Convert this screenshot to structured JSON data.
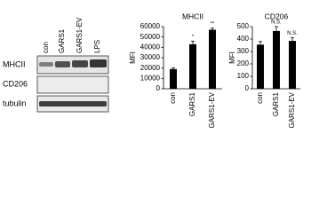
{
  "blot": {
    "lanes": [
      "con",
      "GARS1",
      "GARS1-EV",
      "LPS"
    ],
    "rows": [
      "MHCII",
      "CD206",
      "tubulin"
    ]
  },
  "chart_data": [
    {
      "type": "bar",
      "title": "MHCII",
      "y_label": "MFI",
      "categories": [
        "con",
        "GARS1",
        "GARS1-EV"
      ],
      "values": [
        19000,
        43000,
        57000
      ],
      "errors": [
        1200,
        3000,
        1500
      ],
      "significance": [
        null,
        "*",
        "**"
      ],
      "color": "#000000",
      "ylim": [
        0,
        60000
      ],
      "yticks": [
        0,
        10000,
        20000,
        30000,
        40000,
        50000,
        60000
      ]
    },
    {
      "type": "bar",
      "title": "CD206",
      "y_label": "MFI",
      "categories": [
        "con",
        "GARS1",
        "GARS1-EV"
      ],
      "values": [
        355,
        465,
        385
      ],
      "errors": [
        25,
        35,
        25
      ],
      "significance": [
        null,
        "N.S.",
        "N.S."
      ],
      "color": "#000000",
      "ylim": [
        0,
        500
      ],
      "yticks": [
        0,
        100,
        200,
        300,
        400,
        500
      ]
    }
  ]
}
